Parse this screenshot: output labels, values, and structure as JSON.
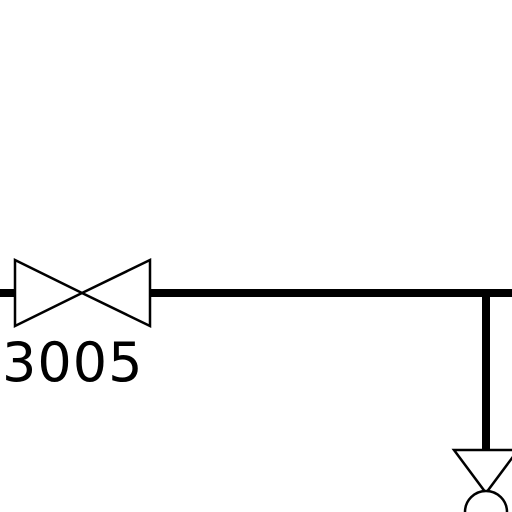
{
  "diagram": {
    "type": "piping-schematic",
    "colors": {
      "line": "#000000",
      "background": "#ffffff"
    },
    "valves": [
      {
        "tag": "3005",
        "symbol": "gate-valve"
      }
    ],
    "partial_symbols": [
      {
        "symbol": "valve-body-partial"
      }
    ]
  }
}
